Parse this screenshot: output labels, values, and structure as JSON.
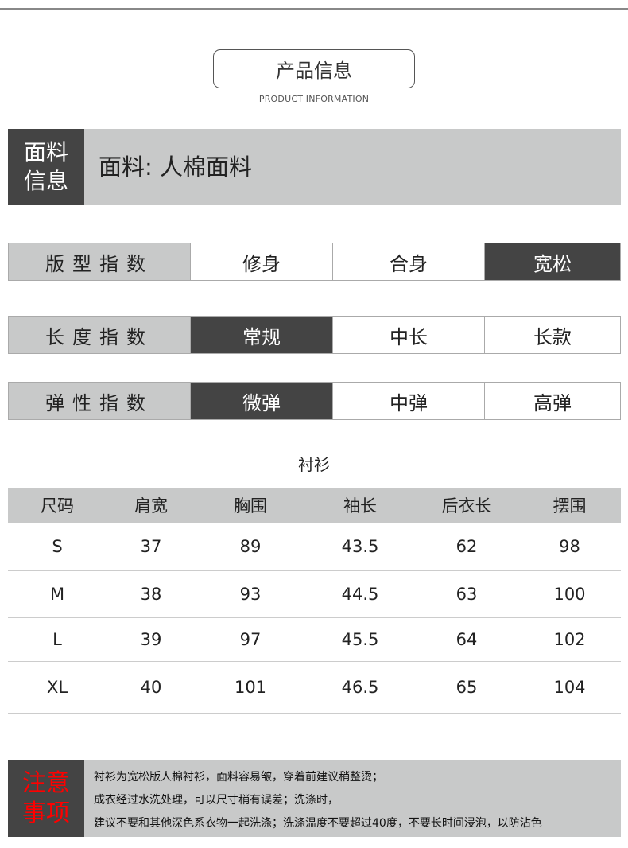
{
  "header": {
    "title": "产品信息",
    "subtitle": "PRODUCT INFORMATION"
  },
  "fabric": {
    "label_line1": "面料",
    "label_line2": "信息",
    "value": "面料: 人棉面料"
  },
  "indices": [
    {
      "label": "版型指数",
      "options": [
        "修身",
        "合身",
        "宽松"
      ],
      "selected": 2
    },
    {
      "label": "长度指数",
      "options": [
        "常规",
        "中长",
        "长款"
      ],
      "selected": 0
    },
    {
      "label": "弹性指数",
      "options": [
        "微弹",
        "中弹",
        "高弹"
      ],
      "selected": 0
    }
  ],
  "size_table": {
    "title": "衬衫",
    "headers": [
      "尺码",
      "肩宽",
      "胸围",
      "袖长",
      "后衣长",
      "摆围"
    ],
    "rows": [
      [
        "S",
        "37",
        "89",
        "43.5",
        "62",
        "98"
      ],
      [
        "M",
        "38",
        "93",
        "44.5",
        "63",
        "100"
      ],
      [
        "L",
        "39",
        "97",
        "45.5",
        "64",
        "102"
      ],
      [
        "XL",
        "40",
        "101",
        "46.5",
        "65",
        "104"
      ]
    ]
  },
  "notes": {
    "label_line1": "注意",
    "label_line2": "事项",
    "lines": [
      "衬衫为宽松版人棉衬衫，面料容易皱，穿着前建议稍整烫；",
      "成衣经过水洗处理，可以尺寸稍有误差；洗涤时，",
      "建议不要和其他深色系衣物一起洗涤；洗涤温度不要超过40度，不要长时间浸泡，以防沾色"
    ],
    "label_color": "#ff0000"
  }
}
